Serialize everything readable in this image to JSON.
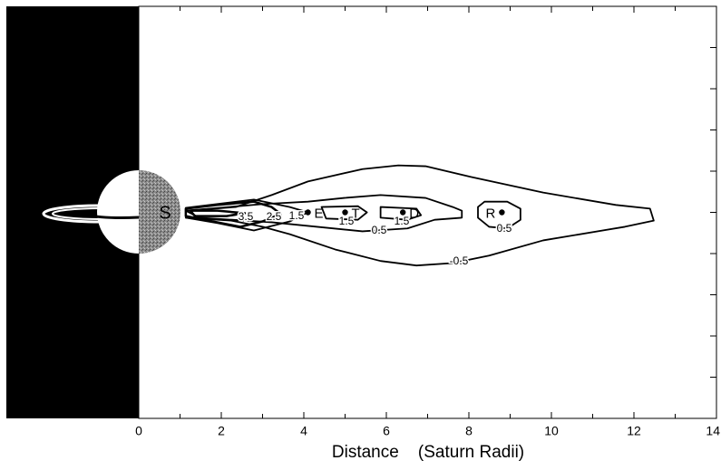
{
  "chart_data": {
    "type": "contour",
    "x_label": "Distance    (Saturn Radii)",
    "xlim": [
      0,
      14
    ],
    "xticks": [
      0,
      2,
      4,
      6,
      8,
      10,
      12,
      14
    ],
    "xminorticks": [
      1,
      3,
      5,
      7,
      9,
      11,
      13
    ],
    "ylim": [
      -5,
      5
    ],
    "yticks": [
      -4,
      -3,
      -2,
      -1,
      0,
      1,
      2,
      3,
      4
    ],
    "planet_label": "S",
    "color": "#000000",
    "contours": [
      {
        "level": -0.5,
        "x": [
          1.14,
          2.35,
          3.22,
          4.1,
          5.42,
          6.29,
          6.95,
          8.05,
          9.8,
          11.56,
          12.39,
          12.48,
          11.78,
          9.8,
          8.49,
          7.61,
          6.73,
          5.86,
          4.76,
          3.66,
          3.0,
          2.24,
          1.14
        ],
        "y": [
          0.04,
          0.13,
          0.42,
          0.75,
          1.05,
          1.14,
          1.12,
          0.86,
          0.48,
          0.18,
          0.09,
          -0.2,
          -0.35,
          -0.68,
          -1.05,
          -1.23,
          -1.29,
          -1.18,
          -0.9,
          -0.53,
          -0.35,
          -0.2,
          -0.13
        ]
      },
      {
        "level": 0.5,
        "x": [
          1.14,
          3.0,
          4.1,
          4.98,
          5.86,
          6.95,
          7.61,
          7.83,
          7.83,
          7.17,
          6.51,
          5.42,
          4.32,
          3.22,
          1.47
        ],
        "y": [
          0.04,
          0.2,
          0.26,
          0.35,
          0.42,
          0.35,
          0.13,
          0.04,
          -0.13,
          -0.18,
          -0.39,
          -0.46,
          -0.35,
          -0.24,
          -0.13
        ]
      },
      {
        "level": 0.5,
        "x": [
          8.38,
          8.93,
          9.25,
          9.25,
          8.93,
          8.49,
          8.22,
          8.22
        ],
        "y": [
          0.26,
          0.26,
          0.09,
          -0.18,
          -0.39,
          -0.35,
          -0.13,
          0.13
        ]
      },
      {
        "level": 1.5,
        "x": [
          1.14,
          2.79,
          3.66,
          4.1,
          3.66,
          2.79,
          1.91,
          1.14
        ],
        "y": [
          0.11,
          0.31,
          0.13,
          0,
          -0.22,
          -0.44,
          -0.26,
          -0.13
        ]
      },
      {
        "level": 1.5,
        "x": [
          4.43,
          5.31,
          5.53,
          5.31,
          4.54
        ],
        "y": [
          0.13,
          0.15,
          0,
          -0.18,
          -0.15
        ]
      },
      {
        "level": 1.5,
        "x": [
          5.86,
          6.73,
          6.84,
          6.51,
          5.86
        ],
        "y": [
          0.13,
          0.09,
          -0.07,
          -0.18,
          -0.13
        ]
      },
      {
        "level": 2.5,
        "x": [
          1.14,
          1.91,
          2.79,
          3.22,
          3.44,
          3.0,
          2.46,
          1.69,
          1.14
        ],
        "y": [
          0.09,
          0.18,
          0.26,
          0.13,
          -0.04,
          -0.22,
          -0.35,
          -0.2,
          -0.09
        ]
      },
      {
        "level": 3.5,
        "x": [
          1.25,
          1.91,
          2.57,
          2.13,
          1.36
        ],
        "y": [
          0.04,
          0.04,
          -0.02,
          -0.09,
          -0.09
        ]
      }
    ],
    "moons": [
      {
        "label": "E",
        "x": 4.1,
        "y": 0
      },
      {
        "label": "T",
        "x": 5.0,
        "y": 0
      },
      {
        "label": "D",
        "x": 6.4,
        "y": 0
      },
      {
        "label": "R",
        "x": 8.8,
        "y": 0
      }
    ]
  }
}
